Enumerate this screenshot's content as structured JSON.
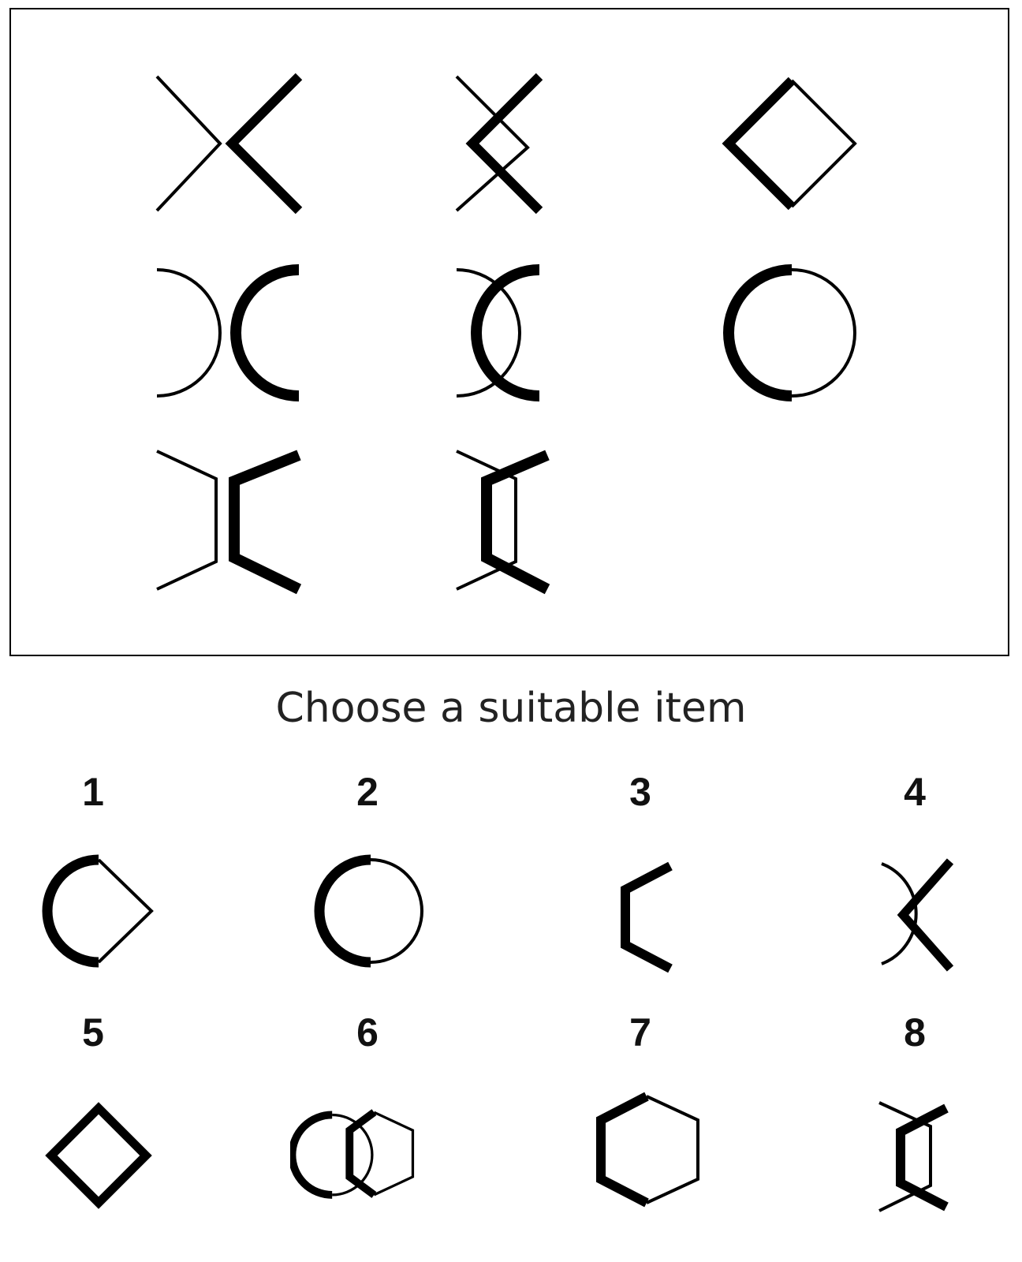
{
  "prompt": "Choose a suitable item",
  "matrix": {
    "cells": [
      {
        "id": "r1c1",
        "figure": "cross-split"
      },
      {
        "id": "r1c2",
        "figure": "cross-overlap"
      },
      {
        "id": "r1c3",
        "figure": "diamond"
      },
      {
        "id": "r2c1",
        "figure": "arcs-split"
      },
      {
        "id": "r2c2",
        "figure": "arcs-overlap"
      },
      {
        "id": "r2c3",
        "figure": "circle"
      },
      {
        "id": "r3c1",
        "figure": "hex-split"
      },
      {
        "id": "r3c2",
        "figure": "hex-overlap"
      },
      {
        "id": "r3c3",
        "figure": "missing"
      }
    ]
  },
  "options": [
    {
      "number": "1",
      "figure": "circle-diamond-hybrid"
    },
    {
      "number": "2",
      "figure": "circle"
    },
    {
      "number": "3",
      "figure": "half-hexagon"
    },
    {
      "number": "4",
      "figure": "arc-cross-overlap"
    },
    {
      "number": "5",
      "figure": "diamond"
    },
    {
      "number": "6",
      "figure": "circle-hexagon-overlap"
    },
    {
      "number": "7",
      "figure": "hexagon"
    },
    {
      "number": "8",
      "figure": "hex-overlap"
    }
  ]
}
